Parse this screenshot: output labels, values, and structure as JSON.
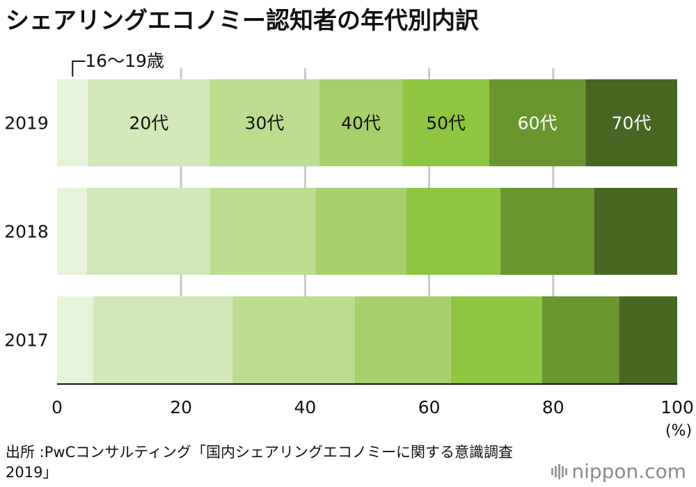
{
  "chart_data": {
    "type": "bar",
    "orientation": "horizontal",
    "stacked": true,
    "title": "シェアリングエコノミー認知者の年代別内訳",
    "categories": [
      "2019",
      "2018",
      "2017"
    ],
    "series": [
      {
        "name": "16〜19歳",
        "color": "#e6f3d9",
        "label_color": "#111111",
        "values": [
          5.0,
          4.8,
          5.8
        ]
      },
      {
        "name": "20代",
        "color": "#d2e8b8",
        "label_color": "#111111",
        "values": [
          19.6,
          19.9,
          22.5
        ]
      },
      {
        "name": "30代",
        "color": "#bcdd8f",
        "label_color": "#111111",
        "values": [
          17.7,
          17.0,
          19.7
        ]
      },
      {
        "name": "40代",
        "color": "#a6d06b",
        "label_color": "#111111",
        "values": [
          13.4,
          14.6,
          15.5
        ]
      },
      {
        "name": "50代",
        "color": "#8ec641",
        "label_color": "#111111",
        "values": [
          14.0,
          15.2,
          14.7
        ]
      },
      {
        "name": "60代",
        "color": "#6a9630",
        "label_color": "#ffffff",
        "values": [
          15.5,
          15.1,
          12.4
        ]
      },
      {
        "name": "70代",
        "color": "#476723",
        "label_color": "#ffffff",
        "values": [
          14.8,
          13.4,
          9.4
        ]
      }
    ],
    "xlim": [
      0,
      100
    ],
    "x_ticks": [
      0,
      20,
      40,
      60,
      80,
      100
    ],
    "x_unit": "(%)",
    "grid": true,
    "legend": "inline-on-top-bar"
  },
  "source": "出所 :PwCコンサルティング「国内シェアリングエコノミーに関する意識調査2019」",
  "brand": {
    "prefix": "nippon",
    "suffix": ".com"
  }
}
